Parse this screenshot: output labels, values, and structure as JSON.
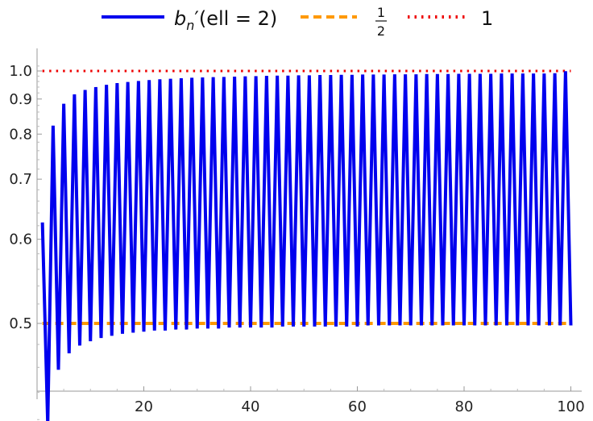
{
  "chart_data": {
    "type": "line",
    "title": "",
    "xlabel": "",
    "ylabel": "",
    "xlim": [
      0,
      101
    ],
    "ylim": [
      0.4,
      1.03
    ],
    "y_scale": "reciprocal",
    "x_ticks": [
      20,
      40,
      60,
      80,
      100
    ],
    "x_tick_labels": [
      "20",
      "40",
      "60",
      "80",
      "100"
    ],
    "y_ticks": [
      0.5,
      0.6,
      0.7,
      0.8,
      0.9,
      1.0
    ],
    "y_tick_labels": [
      "0.5",
      "0.6",
      "0.7",
      "0.8",
      "0.9",
      "1.0"
    ],
    "legend_position": "top",
    "series": [
      {
        "name": "b_n′(ell = 2)",
        "legend_base": "b",
        "legend_sub": "n",
        "legend_rest": "′(ell = 2)",
        "color": "#0000ee",
        "style": "solid",
        "n_start": 1,
        "n_end": 100,
        "values": [
          0.625,
          0.416667,
          0.822,
          0.458,
          0.885,
          0.472,
          0.915,
          0.479,
          0.93,
          0.483,
          0.94,
          0.486,
          0.948,
          0.488,
          0.954,
          0.49,
          0.958,
          0.491,
          0.962,
          0.492,
          0.965,
          0.493,
          0.968,
          0.493,
          0.97,
          0.494,
          0.972,
          0.494,
          0.974,
          0.495,
          0.975,
          0.495,
          0.976,
          0.495,
          0.977,
          0.496,
          0.978,
          0.496,
          0.979,
          0.496,
          0.98,
          0.496,
          0.981,
          0.496,
          0.982,
          0.497,
          0.982,
          0.497,
          0.983,
          0.497,
          0.983,
          0.497,
          0.984,
          0.497,
          0.984,
          0.497,
          0.985,
          0.497,
          0.985,
          0.497,
          0.986,
          0.498,
          0.986,
          0.498,
          0.986,
          0.498,
          0.987,
          0.498,
          0.987,
          0.498,
          0.987,
          0.498,
          0.988,
          0.498,
          0.988,
          0.498,
          0.988,
          0.498,
          0.989,
          0.498,
          0.989,
          0.498,
          0.989,
          0.498,
          0.989,
          0.498,
          0.99,
          0.498,
          0.99,
          0.498,
          0.99,
          0.498,
          0.99,
          0.498,
          0.99,
          0.498,
          0.991,
          0.498,
          0.999,
          0.498
        ]
      },
      {
        "name": "1/2",
        "legend_num": "1",
        "legend_den": "2",
        "color": "#ff9900",
        "style": "dashed",
        "constant": 0.5
      },
      {
        "name": "1",
        "color": "#ee0000",
        "style": "dotted",
        "constant": 1.0
      }
    ]
  }
}
